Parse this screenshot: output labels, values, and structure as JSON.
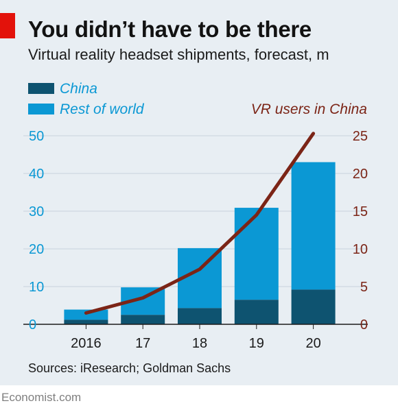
{
  "header": {
    "title": "You didn’t have to be there",
    "subtitle": "Virtual reality headset shipments, forecast, m"
  },
  "legend": {
    "china": "China",
    "rest_of_world": "Rest of world",
    "line": "VR users in China"
  },
  "footer": {
    "source": "Sources: iResearch; Goldman Sachs",
    "brand": "Economist.com"
  },
  "colors": {
    "china": "#0e5370",
    "rest_of_world": "#0b98d4",
    "line": "#7b2416",
    "left_axis_text": "#0b98d4",
    "right_axis_text": "#7b2416",
    "brand_red": "#e3120b",
    "panel": "#e8eef3"
  },
  "chart_data": {
    "type": "bar",
    "stacked": true,
    "title": "You didn’t have to be there",
    "subtitle": "Virtual reality headset shipments, forecast, m",
    "categories": [
      "2016",
      "17",
      "18",
      "19",
      "20"
    ],
    "series": [
      {
        "name": "China",
        "values": [
          1.2,
          2.5,
          4.3,
          6.5,
          9.2
        ]
      },
      {
        "name": "Rest of world",
        "values": [
          2.7,
          7.3,
          15.9,
          24.4,
          33.8
        ]
      }
    ],
    "line_series": {
      "name": "VR users in China",
      "values": [
        1.5,
        3.5,
        7.3,
        14.5,
        25.3
      ]
    },
    "y_left": {
      "ticks": [
        "0",
        "10",
        "20",
        "30",
        "40",
        "50"
      ],
      "ylim": [
        0,
        50
      ]
    },
    "y_right": {
      "ticks": [
        "0",
        "5",
        "10",
        "15",
        "20",
        "25"
      ],
      "ylim": [
        0,
        25
      ]
    },
    "grid": true,
    "legend_position": "top-left"
  }
}
